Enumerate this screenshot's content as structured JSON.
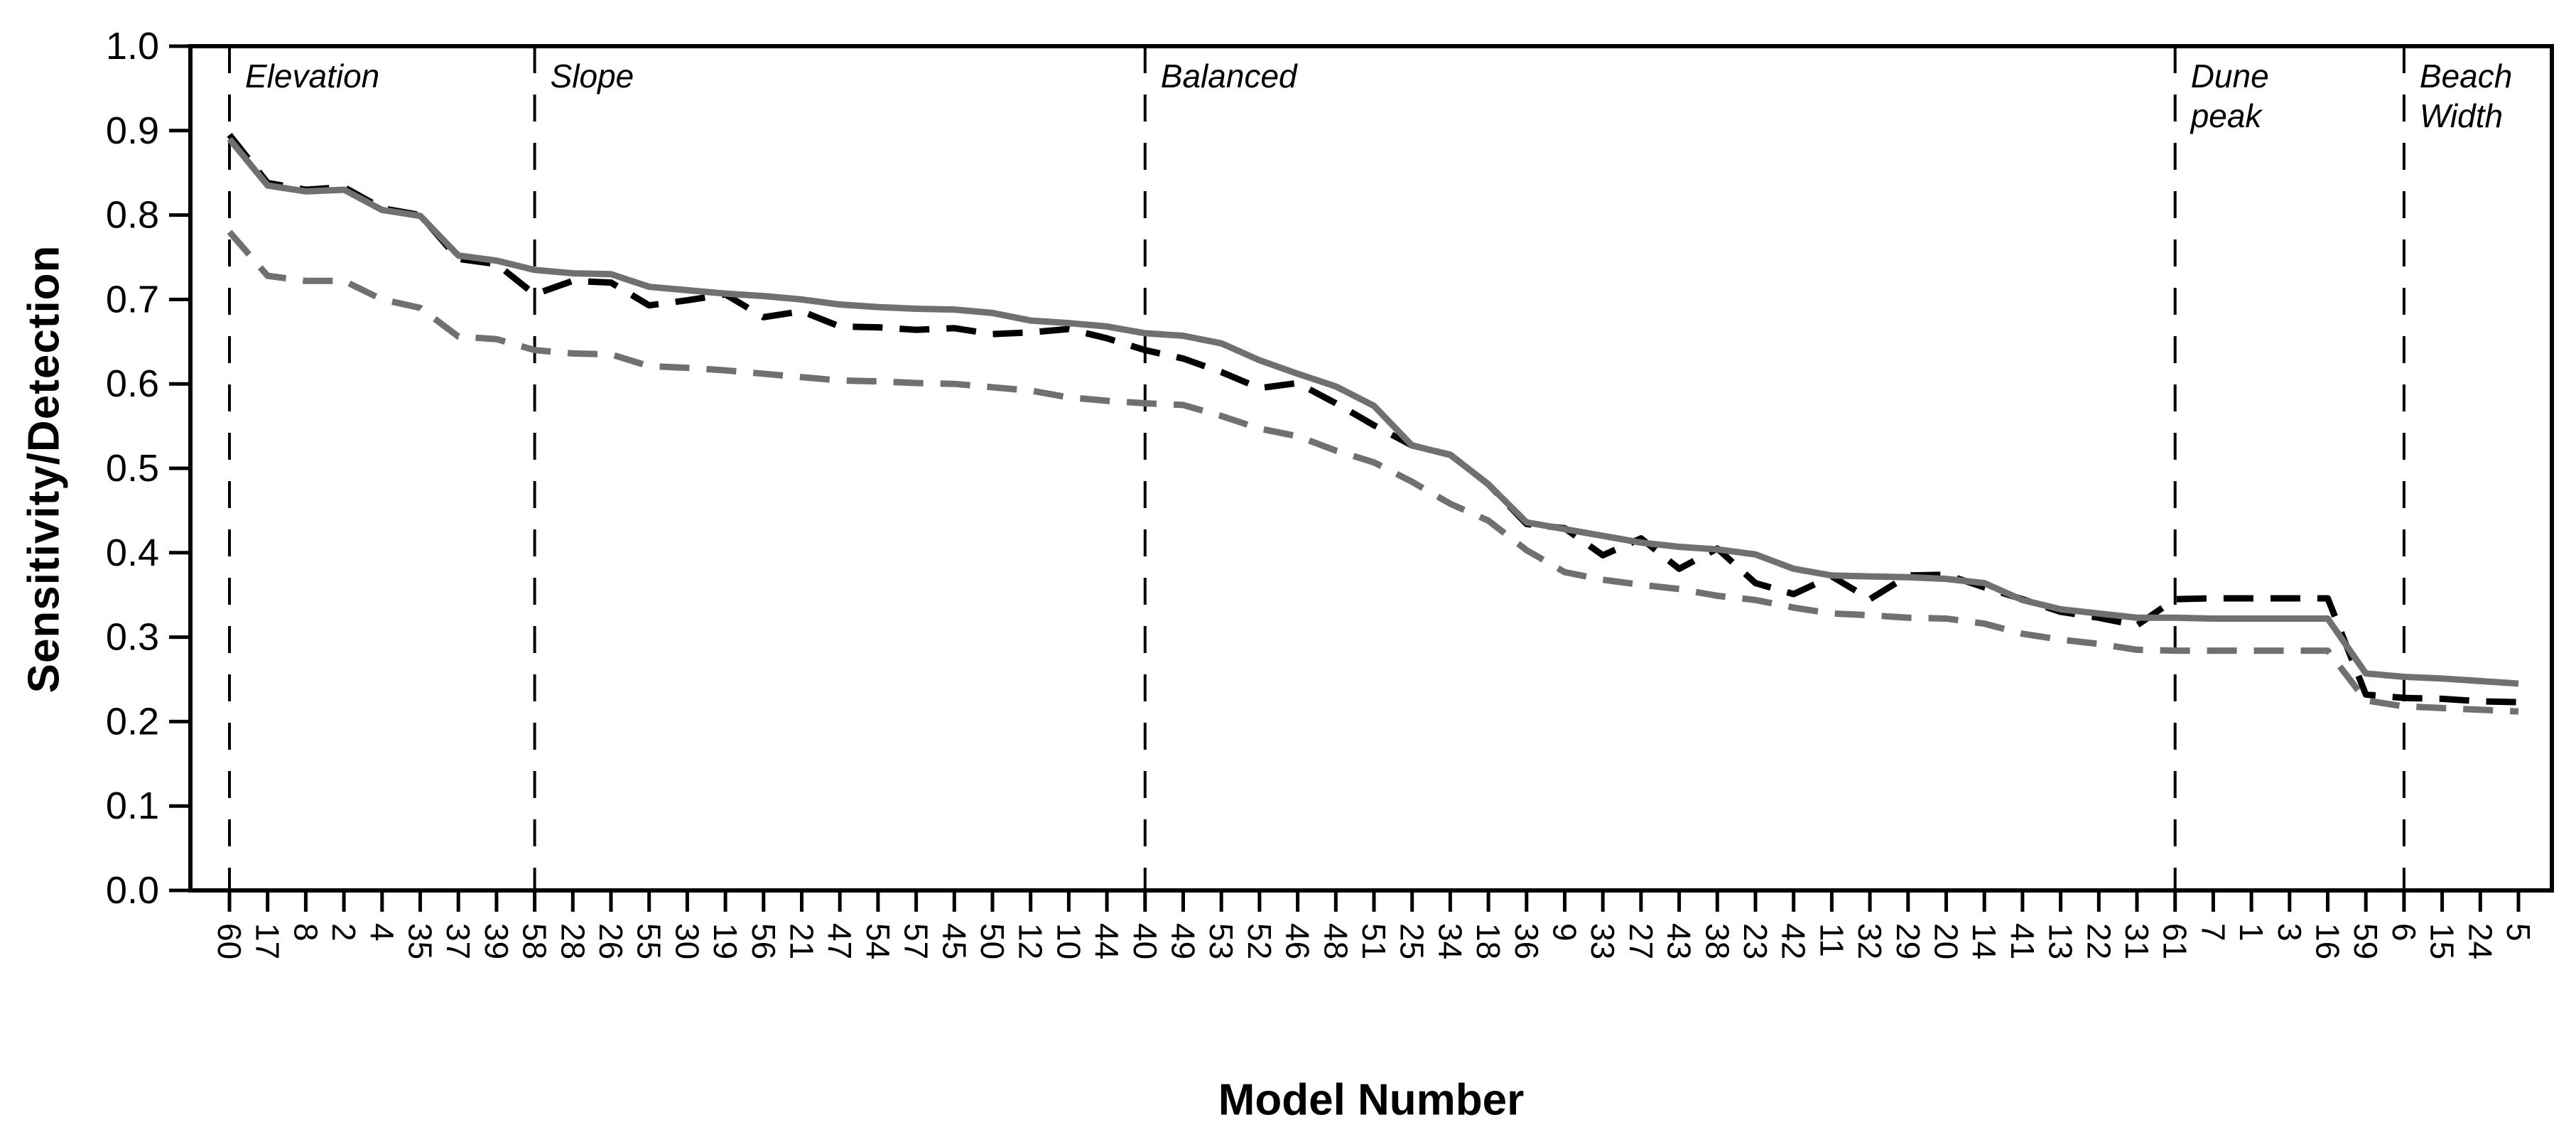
{
  "chart_data": {
    "type": "line",
    "title": "",
    "xlabel": "Model Number",
    "ylabel": "Sensitivity/Detection",
    "ylim": [
      0.0,
      1.0
    ],
    "ytick_labels": [
      "0.0",
      "0.1",
      "0.2",
      "0.3",
      "0.4",
      "0.5",
      "0.6",
      "0.7",
      "0.8",
      "0.9",
      "1.0"
    ],
    "grid": false,
    "legend": "none",
    "categories": [
      "60",
      "17",
      "8",
      "2",
      "4",
      "35",
      "37",
      "39",
      "58",
      "28",
      "26",
      "55",
      "30",
      "19",
      "56",
      "21",
      "47",
      "54",
      "57",
      "45",
      "50",
      "12",
      "10",
      "44",
      "40",
      "49",
      "53",
      "52",
      "46",
      "48",
      "51",
      "25",
      "34",
      "18",
      "36",
      "9",
      "33",
      "27",
      "43",
      "38",
      "23",
      "42",
      "11",
      "32",
      "29",
      "20",
      "14",
      "41",
      "13",
      "22",
      "31",
      "61",
      "7",
      "1",
      "3",
      "16",
      "59",
      "6",
      "15",
      "24",
      "5"
    ],
    "series": [
      {
        "name": "sensitivity-black-dashed",
        "color": "#000000",
        "style": "dashed",
        "values": [
          0.895,
          0.838,
          0.83,
          0.833,
          0.808,
          0.8,
          0.748,
          0.742,
          0.706,
          0.722,
          0.72,
          0.693,
          0.699,
          0.706,
          0.679,
          0.686,
          0.668,
          0.667,
          0.664,
          0.666,
          0.659,
          0.661,
          0.665,
          0.654,
          0.64,
          0.63,
          0.614,
          0.595,
          0.601,
          0.577,
          0.551,
          0.527,
          0.516,
          0.481,
          0.434,
          0.429,
          0.397,
          0.417,
          0.381,
          0.405,
          0.364,
          0.351,
          0.372,
          0.345,
          0.373,
          0.374,
          0.359,
          0.345,
          0.33,
          0.323,
          0.314,
          0.345,
          0.346,
          0.346,
          0.346,
          0.346,
          0.232,
          0.228,
          0.227,
          0.224,
          0.223
        ]
      },
      {
        "name": "detection-gray-solid",
        "color": "#707070",
        "style": "solid",
        "values": [
          0.89,
          0.835,
          0.828,
          0.83,
          0.806,
          0.799,
          0.752,
          0.746,
          0.735,
          0.731,
          0.73,
          0.715,
          0.711,
          0.707,
          0.704,
          0.7,
          0.694,
          0.691,
          0.689,
          0.688,
          0.684,
          0.675,
          0.672,
          0.668,
          0.66,
          0.657,
          0.648,
          0.628,
          0.612,
          0.597,
          0.574,
          0.527,
          0.516,
          0.481,
          0.436,
          0.428,
          0.42,
          0.412,
          0.407,
          0.404,
          0.398,
          0.381,
          0.373,
          0.372,
          0.371,
          0.369,
          0.364,
          0.344,
          0.333,
          0.328,
          0.323,
          0.323,
          0.322,
          0.322,
          0.322,
          0.322,
          0.257,
          0.253,
          0.251,
          0.248,
          0.245
        ]
      },
      {
        "name": "gray-dashed-lower",
        "color": "#707070",
        "style": "dashed",
        "values": [
          0.78,
          0.728,
          0.722,
          0.722,
          0.7,
          0.69,
          0.656,
          0.653,
          0.64,
          0.636,
          0.635,
          0.621,
          0.619,
          0.616,
          0.612,
          0.608,
          0.604,
          0.603,
          0.601,
          0.6,
          0.596,
          0.592,
          0.584,
          0.58,
          0.577,
          0.575,
          0.562,
          0.547,
          0.538,
          0.521,
          0.507,
          0.484,
          0.458,
          0.438,
          0.403,
          0.377,
          0.368,
          0.362,
          0.357,
          0.349,
          0.344,
          0.335,
          0.328,
          0.326,
          0.323,
          0.322,
          0.316,
          0.304,
          0.297,
          0.292,
          0.285,
          0.284,
          0.284,
          0.284,
          0.284,
          0.284,
          0.225,
          0.218,
          0.216,
          0.214,
          0.212
        ]
      }
    ],
    "annotations": [
      {
        "lines": [
          "Elevation"
        ],
        "category_index": 0
      },
      {
        "lines": [
          "Slope"
        ],
        "category_index": 8
      },
      {
        "lines": [
          "Balanced"
        ],
        "category_index": 24
      },
      {
        "lines": [
          "Dune",
          "peak"
        ],
        "category_index": 51
      },
      {
        "lines": [
          "Beach",
          "Width"
        ],
        "category_index": 57
      }
    ],
    "annotation_line_style": "vertical-dashed-black"
  }
}
